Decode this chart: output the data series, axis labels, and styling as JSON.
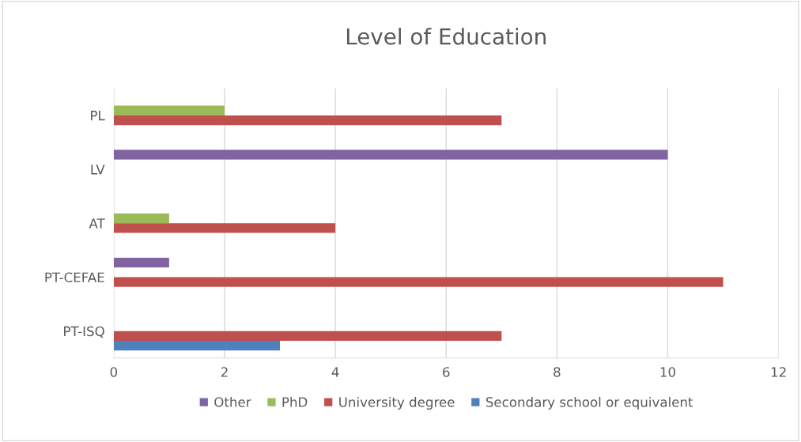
{
  "chart_data": {
    "type": "bar",
    "orientation": "horizontal",
    "title": "Level of Education",
    "categories": [
      "PL",
      "LV",
      "AT",
      "PT-CEFAE",
      "PT-ISQ"
    ],
    "series": [
      {
        "name": "Other",
        "color": "#8064a2",
        "values": [
          null,
          10,
          null,
          1,
          null
        ]
      },
      {
        "name": "PhD",
        "color": "#9bbb59",
        "values": [
          2,
          null,
          1,
          null,
          null
        ]
      },
      {
        "name": "University degree",
        "color": "#c0504d",
        "values": [
          7,
          null,
          4,
          11,
          7
        ]
      },
      {
        "name": "Secondary school or equivalent",
        "color": "#4f81bd",
        "values": [
          null,
          null,
          null,
          null,
          3
        ]
      }
    ],
    "xlim": [
      0,
      12
    ],
    "xticks": [
      0,
      2,
      4,
      6,
      8,
      10,
      12
    ],
    "grid": "x",
    "legend": "bottom"
  }
}
